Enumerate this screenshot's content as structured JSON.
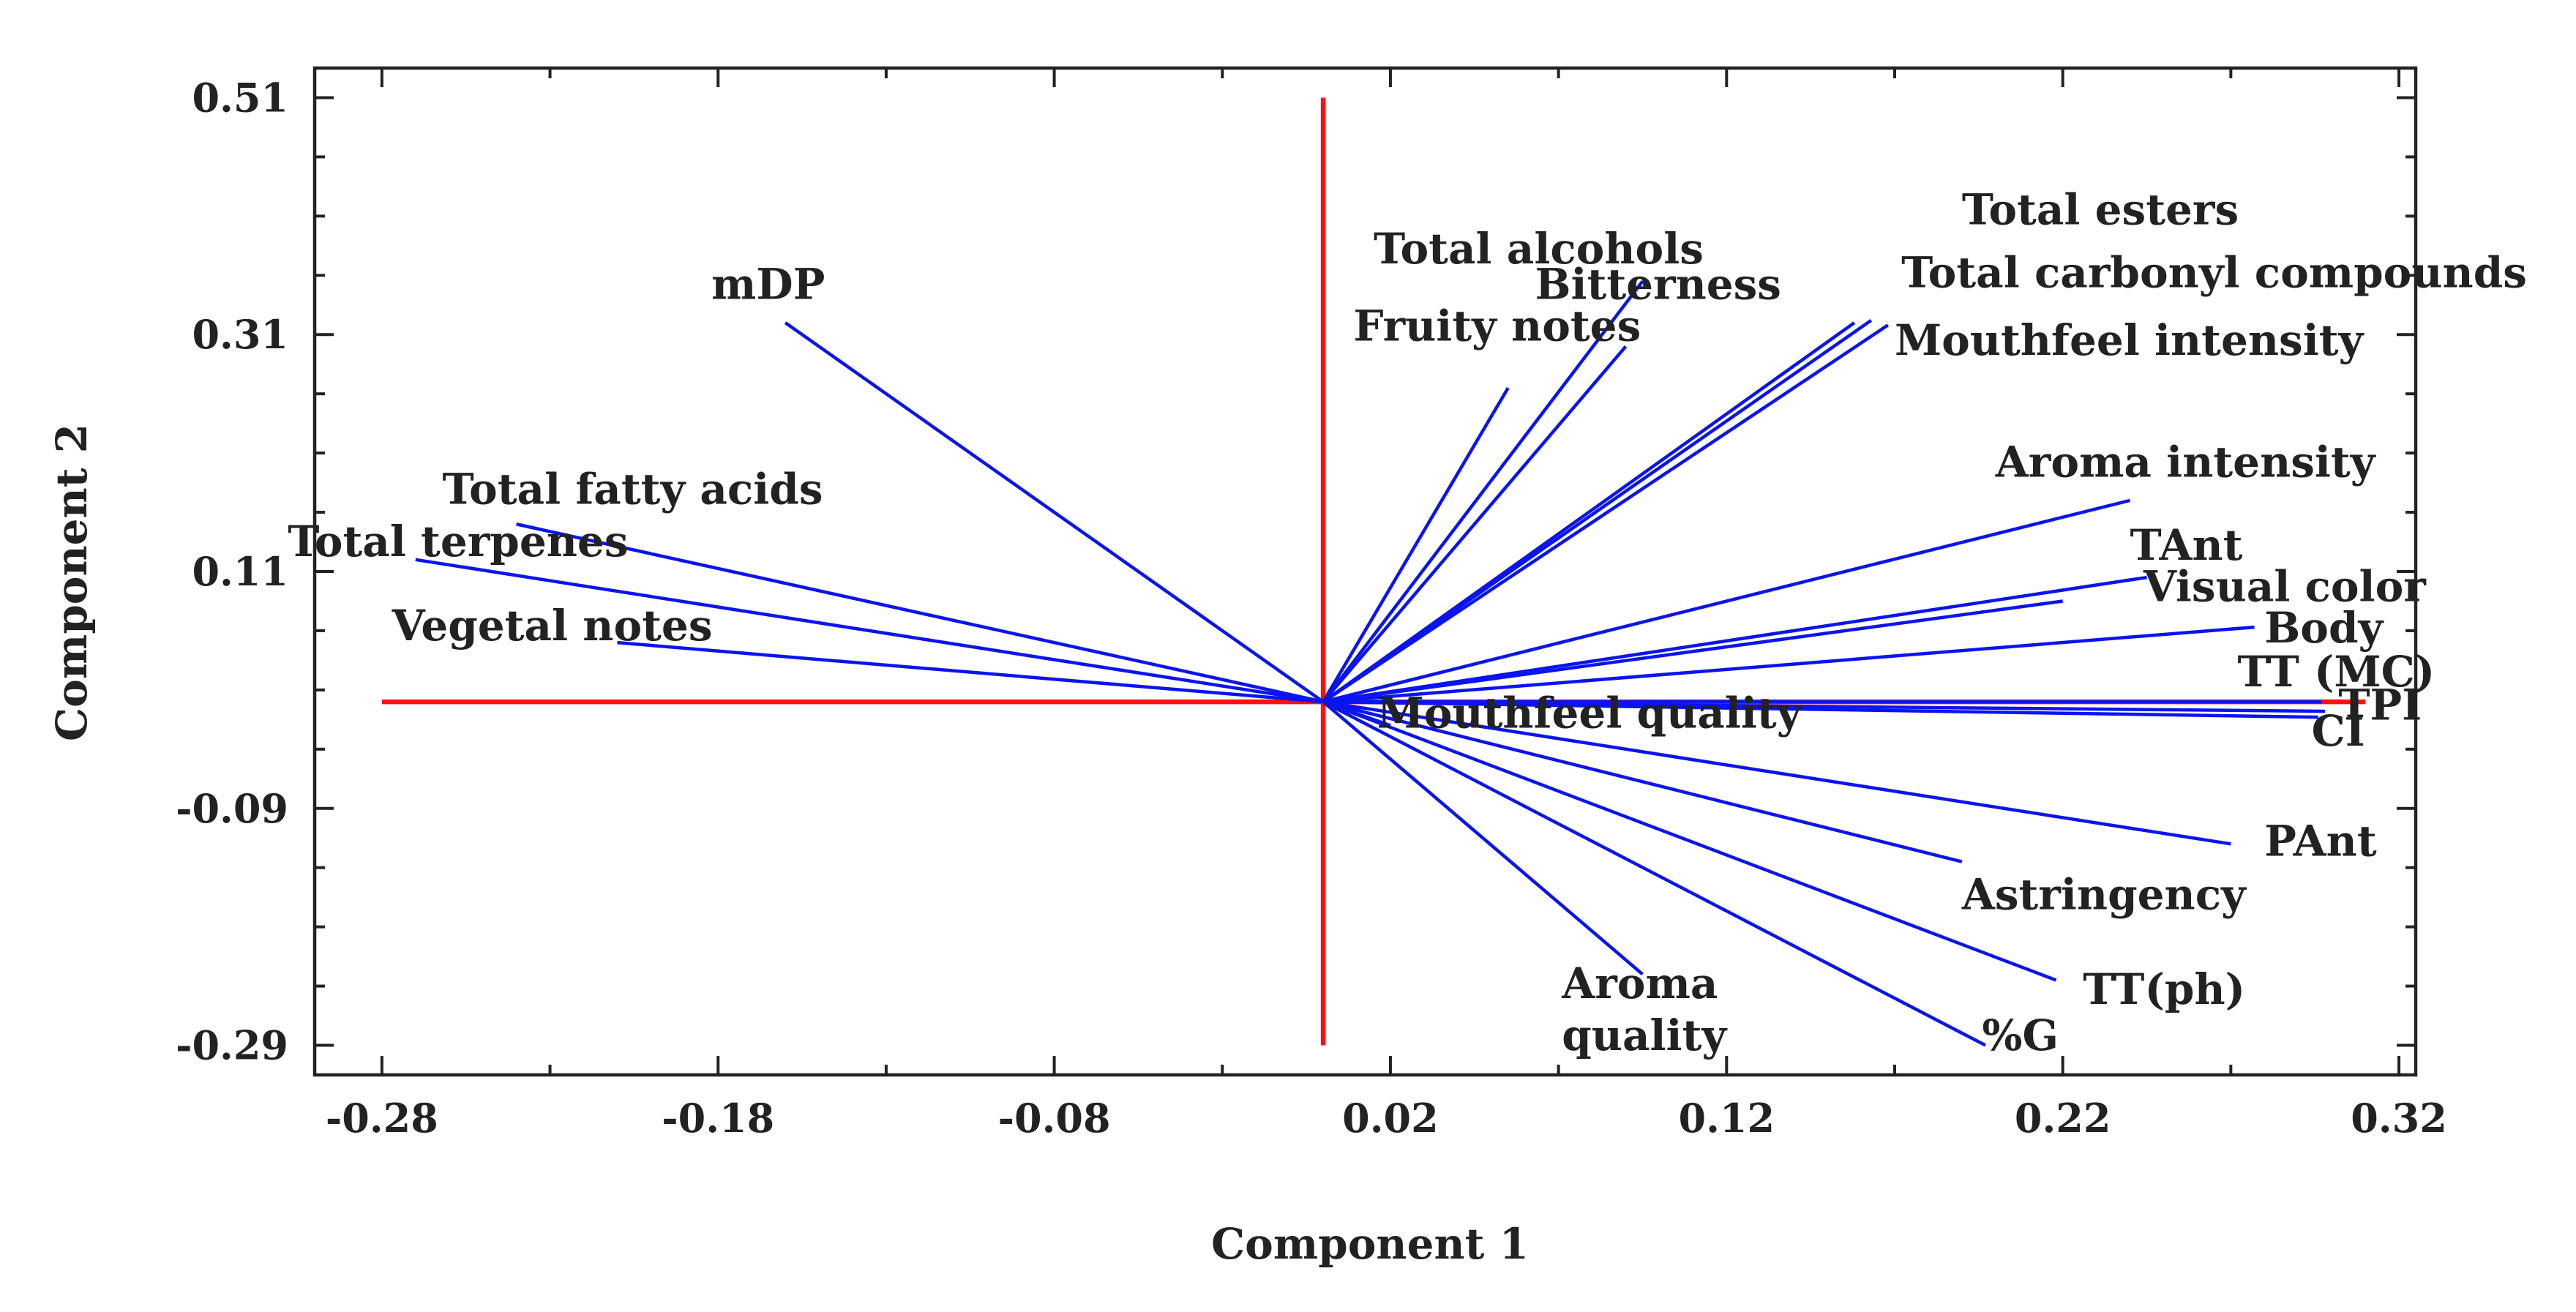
{
  "chart_data": {
    "type": "scatter",
    "subtype": "biplot",
    "title": "",
    "xlabel": "Component 1",
    "ylabel": "Component 2",
    "xlim": [
      -0.3,
      0.325
    ],
    "ylim": [
      -0.315,
      0.535
    ],
    "xticks": [
      -0.28,
      -0.18,
      -0.08,
      0.02,
      0.12,
      0.22,
      0.32
    ],
    "xtick_labels": [
      "-0.28",
      "-0.18",
      "-0.08",
      "0.02",
      "0.12",
      "0.22",
      "0.32"
    ],
    "yticks": [
      -0.29,
      -0.09,
      0.11,
      0.31,
      0.51
    ],
    "ytick_labels": [
      "-0.29",
      "-0.09",
      "0.11",
      "0.31",
      "0.51"
    ],
    "reference_lines": {
      "x": 0.0,
      "y": 0.0,
      "x_range": [
        -0.28,
        0.31
      ],
      "y_range": [
        -0.29,
        0.51
      ],
      "color": "#ff1010"
    },
    "vector_color": "#0a14f0",
    "vectors": [
      {
        "name": "mDP",
        "x": -0.16,
        "y": 0.32
      },
      {
        "name": "Total fatty acids",
        "x": -0.24,
        "y": 0.15
      },
      {
        "name": "Total terpenes",
        "x": -0.27,
        "y": 0.12
      },
      {
        "name": "Vegetal notes",
        "x": -0.21,
        "y": 0.05
      },
      {
        "name": "Fruity notes",
        "x": 0.055,
        "y": 0.265
      },
      {
        "name": "Total alcohols",
        "x": 0.095,
        "y": 0.355
      },
      {
        "name": "Bitterness",
        "x": 0.09,
        "y": 0.3
      },
      {
        "name": "Total esters",
        "x": 0.158,
        "y": 0.32
      },
      {
        "name": "Total carbonyl compounds",
        "x": 0.163,
        "y": 0.322
      },
      {
        "name": "Mouthfeel intensity",
        "x": 0.168,
        "y": 0.318
      },
      {
        "name": "Aroma intensity",
        "x": 0.24,
        "y": 0.17
      },
      {
        "name": "TAnt",
        "x": 0.245,
        "y": 0.105
      },
      {
        "name": "Visual color",
        "x": 0.22,
        "y": 0.085
      },
      {
        "name": "Body",
        "x": 0.277,
        "y": 0.063
      },
      {
        "name": "TT (MC)",
        "x": 0.297,
        "y": 0.0
      },
      {
        "name": "TPI",
        "x": 0.298,
        "y": -0.008
      },
      {
        "name": "CI",
        "x": 0.296,
        "y": -0.013
      },
      {
        "name": "Mouthfeel quality",
        "x": 0.02,
        "y": -0.02
      },
      {
        "name": "PAnt",
        "x": 0.27,
        "y": -0.12
      },
      {
        "name": "Astringency",
        "x": 0.19,
        "y": -0.135
      },
      {
        "name": "TT(ph)",
        "x": 0.218,
        "y": -0.235
      },
      {
        "name": "%G",
        "x": 0.197,
        "y": -0.29
      },
      {
        "name": "Aroma quality",
        "x": 0.095,
        "y": -0.23
      }
    ],
    "labels": [
      {
        "text": "mDP",
        "x": -0.182,
        "y": 0.34
      },
      {
        "text": "Total fatty acids",
        "x": -0.262,
        "y": 0.167
      },
      {
        "text": "Total terpenes",
        "x": -0.308,
        "y": 0.123
      },
      {
        "text": "Vegetal notes",
        "x": -0.277,
        "y": 0.052
      },
      {
        "text": "Fruity notes",
        "x": 0.009,
        "y": 0.305
      },
      {
        "text": "Total alcohols",
        "x": 0.015,
        "y": 0.37
      },
      {
        "text": "Bitterness",
        "x": 0.063,
        "y": 0.34
      },
      {
        "text": "Total esters",
        "x": 0.19,
        "y": 0.403
      },
      {
        "text": "Total carbonyl compounds",
        "x": 0.172,
        "y": 0.35
      },
      {
        "text": "Mouthfeel intensity",
        "x": 0.17,
        "y": 0.293
      },
      {
        "text": "Aroma intensity",
        "x": 0.2,
        "y": 0.19
      },
      {
        "text": "TAnt",
        "x": 0.24,
        "y": 0.12
      },
      {
        "text": "Visual color",
        "x": 0.244,
        "y": 0.085
      },
      {
        "text": "Body",
        "x": 0.28,
        "y": 0.05
      },
      {
        "text": "TT (MC)",
        "x": 0.272,
        "y": 0.013
      },
      {
        "text": "TPI",
        "x": 0.302,
        "y": -0.015
      },
      {
        "text": "CI",
        "x": 0.294,
        "y": -0.037
      },
      {
        "text": "Mouthfeel quality",
        "x": 0.016,
        "y": -0.022
      },
      {
        "text": "PAnt",
        "x": 0.28,
        "y": -0.13
      },
      {
        "text": "Astringency",
        "x": 0.19,
        "y": -0.175
      },
      {
        "text": "TT(ph)",
        "x": 0.226,
        "y": -0.255
      },
      {
        "text": "%G",
        "x": 0.196,
        "y": -0.294
      },
      {
        "text": "Aroma",
        "x": 0.071,
        "y": -0.25
      },
      {
        "text": "quality",
        "x": 0.071,
        "y": -0.294
      }
    ]
  }
}
